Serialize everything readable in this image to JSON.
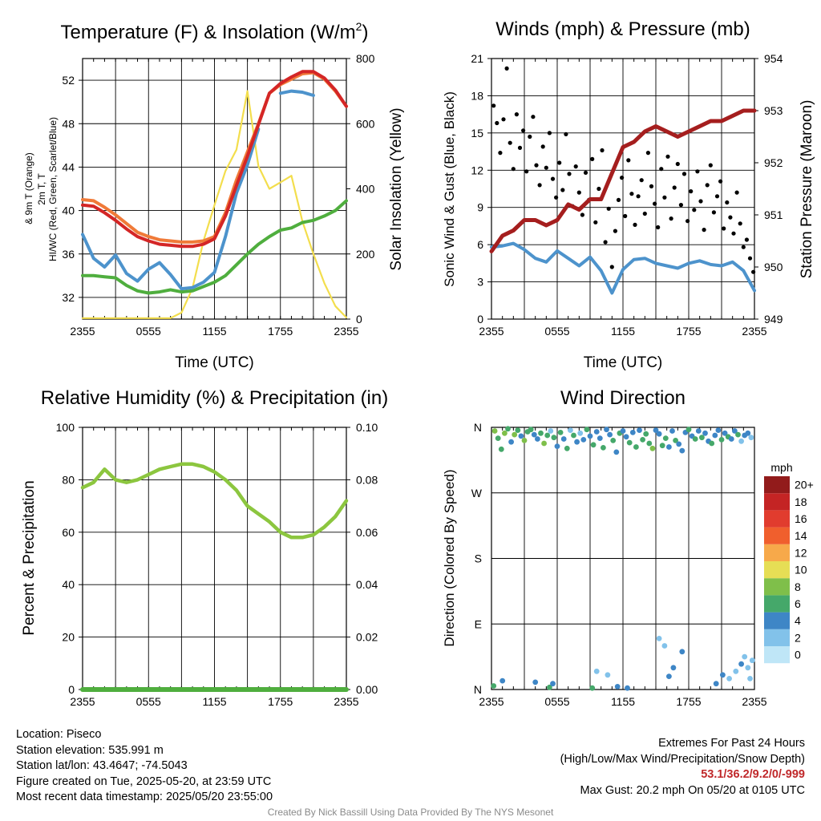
{
  "colors": {
    "red": "#d42626",
    "orange": "#f07a38",
    "blue": "#4d93cc",
    "green": "#4fae3e",
    "yellow": "#f3de4d",
    "maroon": "#a51e1e",
    "black": "#000000",
    "rh_green": "#8cc63f",
    "extremes_red": "#c0282a"
  },
  "x_ticks": [
    "2355",
    "0555",
    "1155",
    "1755",
    "2355"
  ],
  "chart_data": [
    {
      "type": "line",
      "title": "Temperature (F) & Insolation (W/m²)",
      "xlabel": "Time (UTC)",
      "ylabel": "2m T, Td, HI/WC (Red, Green, Scarlet/Blue) & 9m T (Orange)",
      "y2label": "Solar Insolation (Yellow)",
      "ylim": [
        30,
        54
      ],
      "y_ticks": [
        32,
        36,
        40,
        44,
        48,
        52
      ],
      "y2lim": [
        0,
        800
      ],
      "y2_ticks": [
        0,
        200,
        400,
        600,
        800
      ],
      "x_hours": [
        0,
        1,
        2,
        3,
        4,
        5,
        6,
        7,
        8,
        9,
        10,
        11,
        12,
        13,
        14,
        15,
        16,
        17,
        18,
        19,
        20,
        21,
        22,
        23,
        24
      ],
      "series": [
        {
          "key": "orange",
          "axis": "left",
          "values": [
            41.0,
            40.9,
            40.3,
            39.6,
            38.8,
            38.0,
            37.6,
            37.3,
            37.2,
            37.1,
            37.1,
            37.2,
            37.6,
            39.8,
            42.8,
            45.4,
            48.0,
            50.8,
            51.6,
            52.1,
            52.6,
            52.7,
            52.1,
            51.0,
            49.6
          ]
        },
        {
          "key": "red",
          "axis": "left",
          "values": [
            40.5,
            40.4,
            39.8,
            39.1,
            38.3,
            37.6,
            37.2,
            36.9,
            36.8,
            36.7,
            36.7,
            36.9,
            37.4,
            39.5,
            42.3,
            45.0,
            47.9,
            50.8,
            51.7,
            52.3,
            52.8,
            52.8,
            52.2,
            51.1,
            49.6
          ]
        },
        {
          "key": "blue",
          "axis": "left",
          "values": [
            37.8,
            35.6,
            34.8,
            35.9,
            34.2,
            33.5,
            34.6,
            35.2,
            34.1,
            32.8,
            32.9,
            33.4,
            34.3,
            37.6,
            41.6,
            44.2,
            47.5,
            null,
            50.8,
            51.0,
            50.9,
            50.6,
            null,
            null,
            null
          ]
        },
        {
          "key": "green",
          "axis": "left",
          "values": [
            34.0,
            34.0,
            33.9,
            33.8,
            33.1,
            32.6,
            32.4,
            32.5,
            32.7,
            32.5,
            32.6,
            33.0,
            33.4,
            34.0,
            35.0,
            36.0,
            36.9,
            37.6,
            38.2,
            38.4,
            38.9,
            39.1,
            39.5,
            40.0,
            40.9
          ]
        },
        {
          "key": "yellow",
          "axis": "right",
          "values": [
            3,
            3,
            3,
            3,
            3,
            3,
            3,
            3,
            3,
            20,
            95,
            240,
            350,
            455,
            520,
            700,
            470,
            400,
            420,
            440,
            300,
            200,
            110,
            40,
            5
          ]
        }
      ]
    },
    {
      "type": "line",
      "title": "Winds (mph) & Pressure (mb)",
      "xlabel": "Time (UTC)",
      "ylabel": "Sonic Wind & Gust (Blue, Black)",
      "y2label": "Station Pressure (Maroon)",
      "ylim": [
        0,
        21
      ],
      "y_ticks": [
        0,
        3,
        6,
        9,
        12,
        15,
        18,
        21
      ],
      "y2lim": [
        949,
        954
      ],
      "y2_ticks": [
        949,
        950,
        951,
        952,
        953,
        954
      ],
      "x_hours": [
        0,
        1,
        2,
        3,
        4,
        5,
        6,
        7,
        8,
        9,
        10,
        11,
        12,
        13,
        14,
        15,
        16,
        17,
        18,
        19,
        20,
        21,
        22,
        23,
        24
      ],
      "series": [
        {
          "key": "maroon",
          "axis": "right",
          "values": [
            950.3,
            950.6,
            950.7,
            950.9,
            950.9,
            950.8,
            950.9,
            951.2,
            951.1,
            951.3,
            951.3,
            951.8,
            952.3,
            952.4,
            952.6,
            952.7,
            952.6,
            952.5,
            952.6,
            952.7,
            952.8,
            952.8,
            952.9,
            953.0,
            953.0
          ]
        },
        {
          "key": "blue",
          "axis": "left",
          "values": [
            5.8,
            5.9,
            6.1,
            5.6,
            4.9,
            4.6,
            5.5,
            4.9,
            4.3,
            5.0,
            3.9,
            2.1,
            4.0,
            4.8,
            4.9,
            4.5,
            4.3,
            4.1,
            4.5,
            4.7,
            4.4,
            4.3,
            4.6,
            3.9,
            2.3
          ]
        },
        {
          "key": "gust",
          "axis": "left",
          "type": "scatter",
          "x": [
            0.2,
            0.5,
            0.8,
            1.1,
            1.4,
            1.7,
            2.0,
            2.3,
            2.6,
            2.9,
            3.2,
            3.5,
            3.8,
            4.1,
            4.4,
            4.7,
            5.0,
            5.3,
            5.6,
            5.9,
            6.2,
            6.5,
            6.8,
            7.1,
            7.4,
            7.7,
            8.0,
            8.3,
            8.6,
            8.9,
            9.2,
            9.5,
            9.8,
            10.1,
            10.4,
            10.7,
            11.0,
            11.3,
            11.6,
            11.9,
            12.2,
            12.5,
            12.8,
            13.1,
            13.4,
            13.7,
            14.0,
            14.3,
            14.6,
            14.9,
            15.2,
            15.5,
            15.8,
            16.1,
            16.4,
            16.7,
            17.0,
            17.3,
            17.6,
            17.9,
            18.2,
            18.5,
            18.8,
            19.1,
            19.4,
            19.7,
            20.0,
            20.3,
            20.6,
            20.9,
            21.2,
            21.5,
            21.8,
            22.1,
            22.4,
            22.7,
            23.0,
            23.3,
            23.6,
            23.9
          ],
          "values": [
            17.2,
            15.8,
            13.4,
            16.1,
            20.2,
            14.2,
            12.1,
            16.5,
            13.8,
            15.2,
            11.9,
            14.7,
            16.3,
            12.4,
            10.8,
            13.9,
            12.2,
            15.0,
            11.3,
            9.8,
            12.6,
            10.4,
            14.9,
            11.7,
            9.1,
            12.3,
            10.2,
            8.4,
            11.8,
            9.6,
            12.9,
            7.8,
            10.5,
            13.6,
            6.2,
            8.9,
            4.2,
            7.1,
            9.6,
            11.4,
            8.3,
            12.8,
            10.1,
            7.6,
            9.9,
            11.2,
            8.5,
            13.4,
            10.7,
            9.3,
            7.4,
            12.1,
            9.8,
            13.1,
            8.1,
            10.6,
            12.5,
            9.2,
            11.7,
            7.9,
            10.3,
            8.8,
            11.9,
            9.5,
            7.2,
            10.8,
            12.4,
            8.6,
            9.9,
            11.1,
            7.3,
            9.4,
            8.2,
            6.9,
            10.2,
            7.7,
            5.8,
            6.4,
            4.9,
            3.8
          ]
        }
      ]
    },
    {
      "type": "line",
      "title": "Relative Humidity (%) & Precipitation (in)",
      "xlabel": "",
      "ylabel": "Percent & Precipitation",
      "ylim": [
        0,
        100
      ],
      "y_ticks": [
        0,
        20,
        40,
        60,
        80,
        100
      ],
      "y2lim": [
        0,
        0.1
      ],
      "y2_ticks": [
        "0.00",
        "0.02",
        "0.04",
        "0.06",
        "0.08",
        "0.10"
      ],
      "x_hours": [
        0,
        1,
        2,
        3,
        4,
        5,
        6,
        7,
        8,
        9,
        10,
        11,
        12,
        13,
        14,
        15,
        16,
        17,
        18,
        19,
        20,
        21,
        22,
        23,
        24
      ],
      "series": [
        {
          "key": "rh_green",
          "axis": "left",
          "values": [
            77,
            79,
            84,
            80,
            79,
            80,
            82,
            84,
            85,
            86,
            86,
            85,
            83,
            80,
            76,
            70,
            67,
            64,
            60,
            58,
            58,
            59,
            62,
            66,
            72
          ]
        },
        {
          "key": "green",
          "axis": "right",
          "values": [
            0,
            0,
            0,
            0,
            0,
            0,
            0,
            0,
            0,
            0,
            0,
            0,
            0,
            0,
            0,
            0,
            0,
            0,
            0,
            0,
            0,
            0,
            0,
            0,
            0
          ]
        }
      ]
    },
    {
      "type": "scatter",
      "title": "Wind Direction",
      "xlabel": "",
      "ylabel": "Direction (Colored By Speed)",
      "y_ticks": [
        "N",
        "E",
        "S",
        "W",
        "N"
      ],
      "ylim": [
        0,
        360
      ],
      "legend_title": "mph",
      "legend_labels": [
        "0",
        "2",
        "4",
        "6",
        "8",
        "10",
        "12",
        "14",
        "16",
        "18",
        "20+"
      ],
      "legend_colors": [
        "#bfe6f7",
        "#82c2ea",
        "#3e86c6",
        "#45a86a",
        "#7fbf4a",
        "#e6de55",
        "#f7a94a",
        "#f05f2d",
        "#e13c2e",
        "#c42424",
        "#921b1b"
      ],
      "legend_position": "right",
      "points_x": [
        0.3,
        0.6,
        0.9,
        1.2,
        1.5,
        1.8,
        2.1,
        2.4,
        2.7,
        3.0,
        3.3,
        3.6,
        3.9,
        4.2,
        4.5,
        4.8,
        5.1,
        5.4,
        5.7,
        6.0,
        6.3,
        6.6,
        6.9,
        7.2,
        7.5,
        7.8,
        8.1,
        8.4,
        8.7,
        9.0,
        9.3,
        9.6,
        9.9,
        10.2,
        10.5,
        10.8,
        11.1,
        11.4,
        11.7,
        12.0,
        12.3,
        12.6,
        12.9,
        13.2,
        13.5,
        13.8,
        14.1,
        14.4,
        14.7,
        15.0,
        15.3,
        15.6,
        15.9,
        16.2,
        16.5,
        16.8,
        17.1,
        17.4,
        17.7,
        18.0,
        18.3,
        18.6,
        18.9,
        19.2,
        19.5,
        19.8,
        20.1,
        20.4,
        20.7,
        21.0,
        21.3,
        21.6,
        21.9,
        22.2,
        22.5,
        22.8,
        23.1,
        23.4,
        23.7,
        0.2,
        1.0,
        4.0,
        5.3,
        5.6,
        9.2,
        9.6,
        10.6,
        11.5,
        12.4,
        15.3,
        15.8,
        16.2,
        16.6,
        17.4,
        20.5,
        21.1,
        21.7,
        22.3,
        22.8,
        23.1,
        23.4,
        23.6,
        23.8
      ],
      "points_dir": [
        355,
        345,
        330,
        352,
        358,
        340,
        350,
        356,
        348,
        342,
        354,
        357,
        350,
        344,
        352,
        338,
        349,
        355,
        346,
        334,
        353,
        344,
        331,
        356,
        349,
        340,
        352,
        343,
        357,
        348,
        336,
        354,
        345,
        332,
        357,
        350,
        342,
        326,
        352,
        355,
        347,
        339,
        353,
        333,
        356,
        343,
        351,
        338,
        331,
        356,
        351,
        335,
        345,
        333,
        355,
        342,
        337,
        328,
        353,
        357,
        348,
        344,
        355,
        346,
        352,
        341,
        338,
        349,
        356,
        343,
        352,
        347,
        344,
        355,
        350,
        341,
        349,
        352,
        346,
        5,
        12,
        10,
        3,
        8,
        2,
        25,
        20,
        4,
        2,
        70,
        60,
        18,
        30,
        52,
        8,
        20,
        15,
        25,
        35,
        45,
        30,
        15,
        40
      ],
      "points_speed": [
        7,
        6,
        5,
        7,
        6,
        3,
        7,
        5,
        4,
        7,
        6,
        5,
        4,
        3,
        6,
        7,
        5,
        2,
        6,
        4,
        5,
        3,
        6,
        2,
        5,
        4,
        2,
        3,
        5,
        4,
        6,
        3,
        4,
        5,
        4,
        3,
        6,
        4,
        5,
        3,
        4,
        6,
        3,
        5,
        4,
        6,
        5,
        6,
        7,
        3,
        4,
        5,
        6,
        4,
        3,
        5,
        4,
        3,
        4,
        5,
        3,
        6,
        4,
        5,
        3,
        4,
        5,
        3,
        4,
        6,
        4,
        5,
        3,
        4,
        5,
        2,
        4,
        3,
        2,
        5,
        3,
        4,
        6,
        4,
        5,
        2,
        2,
        3,
        4,
        2,
        2,
        4,
        3,
        4,
        3,
        4,
        2,
        2,
        3,
        2,
        2,
        1,
        2
      ]
    }
  ],
  "info": {
    "location": "Location: Piseco",
    "elevation": "Station elevation: 535.991 m",
    "latlon": "Station lat/lon: 43.4647; -74.5043",
    "created": "Figure created on Tue, 2025-05-20, at 23:59 UTC",
    "recent": "Most recent data timestamp: 2025/05/20 23:55:00"
  },
  "extremes": {
    "title": "Extremes For Past 24 Hours",
    "subtitle": "(High/Low/Max Wind/Precipitation/Snow Depth)",
    "values": "53.1/36.2/9.2/0/-999",
    "max_gust": "Max Gust: 20.2 mph On 05/20 at 0105 UTC"
  },
  "credit": "Created By Nick Bassill Using Data Provided By The NYS Mesonet"
}
